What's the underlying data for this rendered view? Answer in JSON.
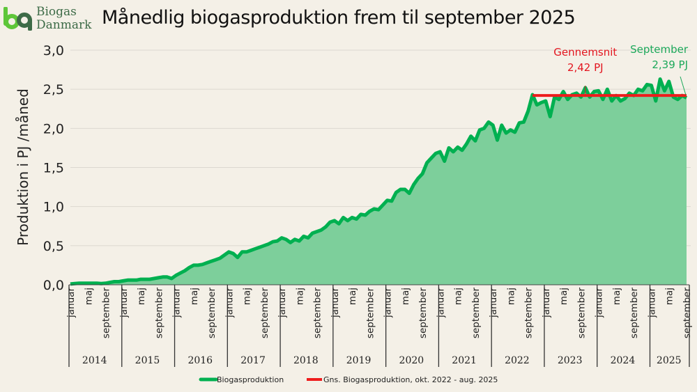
{
  "logo": {
    "line1": "Biogas",
    "line2": "Danmark"
  },
  "chart_data": {
    "type": "area",
    "title": "Månedlig biogasproduktion frem til september 2025",
    "ylabel": "Produktion i PJ /måned",
    "ylim": [
      0,
      3.0
    ],
    "yticks": [
      "0,0",
      "0,5",
      "1,0",
      "1,5",
      "2,0",
      "2,5",
      "3,0"
    ],
    "ytick_values": [
      0,
      0.5,
      1.0,
      1.5,
      2.0,
      2.5,
      3.0
    ],
    "grid": true,
    "start": "2014-01",
    "end": "2025-09",
    "years": [
      "2014",
      "2015",
      "2016",
      "2017",
      "2018",
      "2019",
      "2020",
      "2021",
      "2022",
      "2023",
      "2024",
      "2025"
    ],
    "month_tick_labels": [
      "januar",
      "maj",
      "september"
    ],
    "series": [
      {
        "name": "Biogasproduktion",
        "color": "#00b050",
        "fill": "#7dcf9b",
        "values": [
          0.01,
          0.015,
          0.02,
          0.02,
          0.02,
          0.02,
          0.02,
          0.015,
          0.02,
          0.03,
          0.04,
          0.04,
          0.05,
          0.06,
          0.06,
          0.06,
          0.07,
          0.07,
          0.07,
          0.08,
          0.09,
          0.1,
          0.1,
          0.08,
          0.12,
          0.15,
          0.18,
          0.22,
          0.25,
          0.25,
          0.26,
          0.28,
          0.3,
          0.32,
          0.34,
          0.38,
          0.42,
          0.4,
          0.35,
          0.42,
          0.42,
          0.44,
          0.46,
          0.48,
          0.5,
          0.52,
          0.55,
          0.56,
          0.6,
          0.58,
          0.54,
          0.58,
          0.56,
          0.62,
          0.6,
          0.66,
          0.68,
          0.7,
          0.74,
          0.8,
          0.82,
          0.78,
          0.86,
          0.82,
          0.86,
          0.84,
          0.9,
          0.89,
          0.94,
          0.97,
          0.96,
          1.02,
          1.08,
          1.07,
          1.18,
          1.22,
          1.22,
          1.17,
          1.28,
          1.36,
          1.42,
          1.56,
          1.62,
          1.68,
          1.7,
          1.58,
          1.75,
          1.7,
          1.76,
          1.72,
          1.8,
          1.9,
          1.84,
          1.98,
          2.0,
          2.08,
          2.04,
          1.85,
          2.04,
          1.94,
          1.98,
          1.95,
          2.07,
          2.08,
          2.22,
          2.43,
          2.3,
          2.33,
          2.35,
          2.15,
          2.4,
          2.37,
          2.47,
          2.37,
          2.43,
          2.45,
          2.4,
          2.52,
          2.4,
          2.47,
          2.48,
          2.37,
          2.5,
          2.35,
          2.42,
          2.35,
          2.38,
          2.45,
          2.42,
          2.5,
          2.48,
          2.56,
          2.55,
          2.35,
          2.63,
          2.48,
          2.6,
          2.4,
          2.37,
          2.42,
          2.39
        ]
      },
      {
        "name": "Gns. Biogasproduktion, okt. 2022 - aug. 2025",
        "color": "#ee1c1c",
        "from": "2022-10",
        "to": "2025-09",
        "value": 2.42
      }
    ],
    "annotations": [
      {
        "line1": "Gennemsnit",
        "line2": "2,42 PJ",
        "color": "#e3151f",
        "at": "2023-10"
      },
      {
        "line1": "September",
        "line2": "2,39 PJ",
        "color": "#1ca85a",
        "at": "2025-09"
      }
    ],
    "legend_position": "bottom"
  }
}
